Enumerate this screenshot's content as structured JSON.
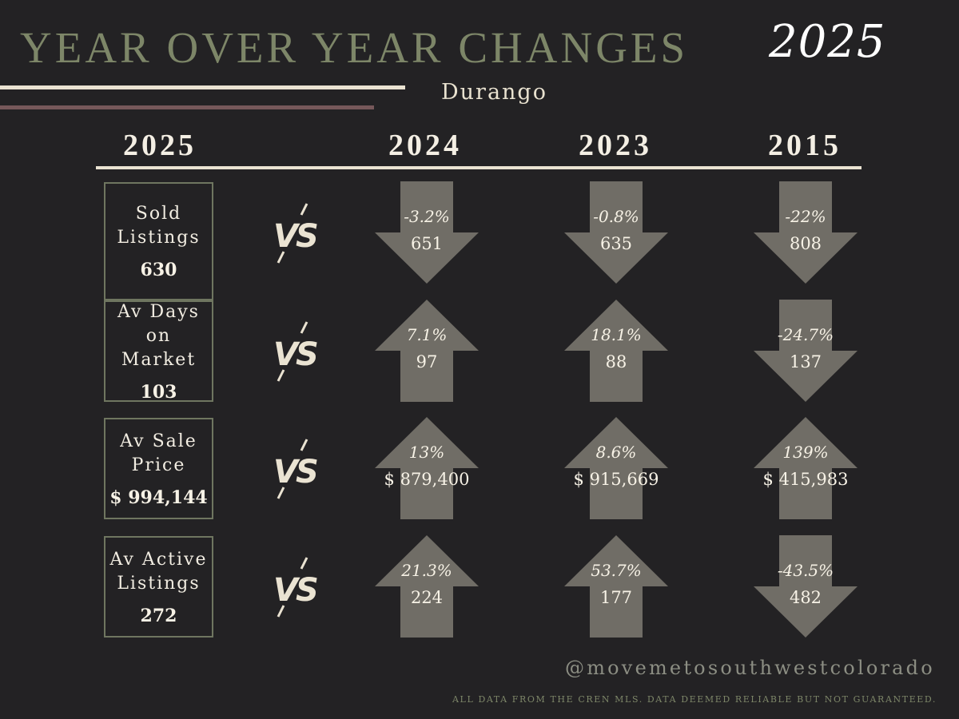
{
  "header": {
    "title": "YEAR OVER YEAR CHANGES",
    "year": "2025",
    "location": "Durango"
  },
  "columns": [
    "2025",
    "2024",
    "2023",
    "2015"
  ],
  "vs_label": "VS",
  "colors": {
    "background": "#232224",
    "accent_green": "#7d8668",
    "arrow_fill": "#706d66",
    "accent_rose": "#76585a",
    "cream": "#eae3d2"
  },
  "rows": [
    {
      "label": "Sold Listings",
      "value": "630",
      "comparisons": [
        {
          "direction": "down",
          "change": "-3.2%",
          "value": "651"
        },
        {
          "direction": "down",
          "change": "-0.8%",
          "value": "635"
        },
        {
          "direction": "down",
          "change": "-22%",
          "value": "808"
        }
      ]
    },
    {
      "label": "Av Days on Market",
      "value": "103",
      "comparisons": [
        {
          "direction": "up",
          "change": "7.1%",
          "value": "97"
        },
        {
          "direction": "up",
          "change": "18.1%",
          "value": "88"
        },
        {
          "direction": "down",
          "change": "-24.7%",
          "value": "137"
        }
      ]
    },
    {
      "label": "Av Sale Price",
      "value": "$ 994,144",
      "comparisons": [
        {
          "direction": "up",
          "change": "13%",
          "value": "$ 879,400"
        },
        {
          "direction": "up",
          "change": "8.6%",
          "value": "$ 915,669"
        },
        {
          "direction": "up",
          "change": "139%",
          "value": "$ 415,983"
        }
      ]
    },
    {
      "label": "Av Active Listings",
      "value": "272",
      "comparisons": [
        {
          "direction": "up",
          "change": "21.3%",
          "value": "224"
        },
        {
          "direction": "up",
          "change": "53.7%",
          "value": "177"
        },
        {
          "direction": "down",
          "change": "-43.5%",
          "value": "482"
        }
      ]
    }
  ],
  "footer": {
    "handle": "@movemetosouthwestcolorado",
    "disclaimer": "ALL DATA FROM THE CREN MLS. DATA DEEMED RELIABLE BUT NOT GUARANTEED."
  }
}
